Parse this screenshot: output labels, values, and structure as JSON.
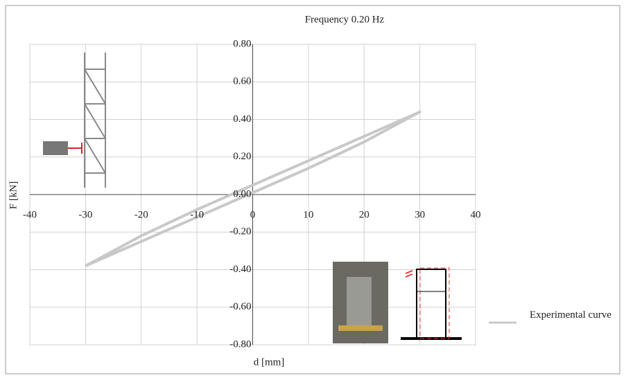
{
  "chart_data": {
    "type": "line",
    "title": "Frequency 0.20 Hz",
    "x_label": "d [mm]",
    "y_label": "F [kN]",
    "xlim": [
      -40,
      40
    ],
    "xticks": [
      -40,
      -30,
      -20,
      -10,
      0,
      10,
      20,
      30,
      40
    ],
    "ylim": [
      -0.8,
      0.8
    ],
    "yticks": [
      {
        "value": 0.8,
        "label": "0.80"
      },
      {
        "value": 0.6,
        "label": "0.60"
      },
      {
        "value": 0.4,
        "label": "0.40"
      },
      {
        "value": 0.2,
        "label": "0.20"
      },
      {
        "value": 0,
        "label": "0.00"
      },
      {
        "value": -0.2,
        "label": "-0.20"
      },
      {
        "value": -0.4,
        "label": "-0.40"
      },
      {
        "value": -0.6,
        "label": "-0.60"
      },
      {
        "value": -0.8,
        "label": "-0.80"
      }
    ],
    "grid": true,
    "x": [
      -30,
      -20,
      -10,
      0,
      10,
      20,
      30,
      20,
      10,
      0,
      -10,
      -20,
      -30
    ],
    "series": [
      {
        "name": "Experimental curve",
        "color": "#c8c8c8",
        "values": [
          -0.38,
          -0.25,
          -0.12,
          0.01,
          0.14,
          0.28,
          0.44,
          0.31,
          0.18,
          0.05,
          -0.08,
          -0.22,
          -0.38
        ]
      }
    ]
  }
}
